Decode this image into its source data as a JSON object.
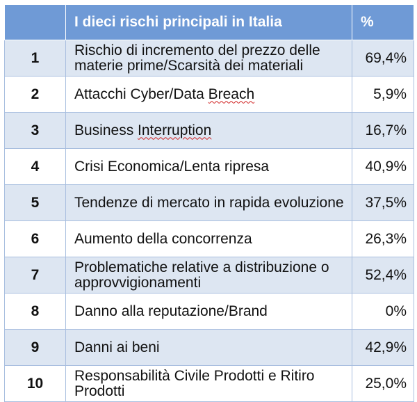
{
  "header": {
    "rank_label": "",
    "title": "I dieci rischi principali in Italia",
    "percent_label": "%"
  },
  "rows": [
    {
      "rank": "1",
      "pre": "Rischio di incremento del prezzo delle materie prime/Scarsità dei materiali",
      "flag": "",
      "post": "",
      "value": "69,4%"
    },
    {
      "rank": "2",
      "pre": "Attacchi Cyber/Data ",
      "flag": "Breach",
      "post": "",
      "value": "5,9%"
    },
    {
      "rank": "3",
      "pre": "Business ",
      "flag": "Interruption",
      "post": "",
      "value": "16,7%"
    },
    {
      "rank": "4",
      "pre": "Crisi Economica/Lenta ripresa",
      "flag": "",
      "post": "",
      "value": "40,9%"
    },
    {
      "rank": "5",
      "pre": "Tendenze di mercato in rapida evoluzione",
      "flag": "",
      "post": "",
      "value": "37,5%"
    },
    {
      "rank": "6",
      "pre": "Aumento della concorrenza",
      "flag": "",
      "post": "",
      "value": "26,3%"
    },
    {
      "rank": "7",
      "pre": "Problematiche relative a distribuzione o approvvigionamenti",
      "flag": "",
      "post": "",
      "value": "52,4%"
    },
    {
      "rank": "8",
      "pre": "Danno alla reputazione/Brand",
      "flag": "",
      "post": "",
      "value": "0%"
    },
    {
      "rank": "9",
      "pre": "Danni ai beni",
      "flag": "",
      "post": "",
      "value": "42,9%"
    },
    {
      "rank": "10",
      "pre": "Responsabilità Civile Prodotti e Ritiro Prodotti",
      "flag": "",
      "post": "",
      "value": "25,0%"
    }
  ],
  "colors": {
    "header_bg": "#6f9ad6",
    "band_bg": "#dde6f2",
    "border": "#a8bedf",
    "spellcheck": "#d02020"
  }
}
